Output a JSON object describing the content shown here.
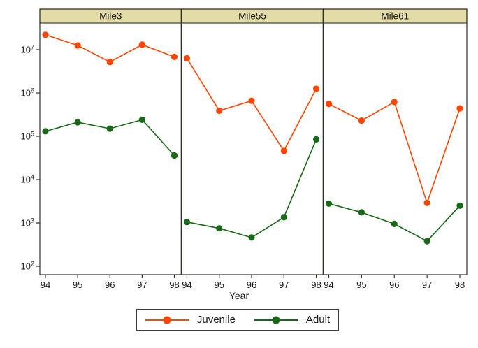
{
  "chart_data": {
    "type": "line",
    "y_scale": "log10",
    "grid": false,
    "legend_position": "bottom",
    "xlabel": "Year",
    "x_categories": [
      "94",
      "95",
      "96",
      "97",
      "98"
    ],
    "y_axis": {
      "base": "10",
      "tick_exponents": [
        7,
        6,
        5,
        4,
        3,
        2
      ],
      "ylim_exponents": [
        2,
        7
      ]
    },
    "legend": [
      {
        "name": "Juvenile",
        "color": "#ff4500"
      },
      {
        "name": "Adult",
        "color": "#176917"
      }
    ],
    "panels": [
      {
        "title": "Mile3",
        "series": [
          {
            "name": "Juvenile",
            "values": [
              22000000,
              12500000,
              5200000,
              13000000,
              6800000
            ]
          },
          {
            "name": "Adult",
            "values": [
              130000,
              210000,
              150000,
              240000,
              36000
            ]
          }
        ]
      },
      {
        "title": "Mile55",
        "series": [
          {
            "name": "Juvenile",
            "values": [
              6300000,
              390000,
              660000,
              46000,
              1250000
            ]
          },
          {
            "name": "Adult",
            "values": [
              1050,
              750,
              460,
              1350,
              85000
            ]
          }
        ]
      },
      {
        "title": "Mile61",
        "series": [
          {
            "name": "Juvenile",
            "values": [
              560000,
              230000,
              620000,
              2900,
              440000
            ]
          },
          {
            "name": "Adult",
            "values": [
              2800,
              1750,
              950,
              380,
              2500
            ]
          }
        ]
      }
    ],
    "colors": {
      "header_bg": "#e3dca6",
      "border": "#30302a",
      "text": "#1a1a1a"
    }
  }
}
